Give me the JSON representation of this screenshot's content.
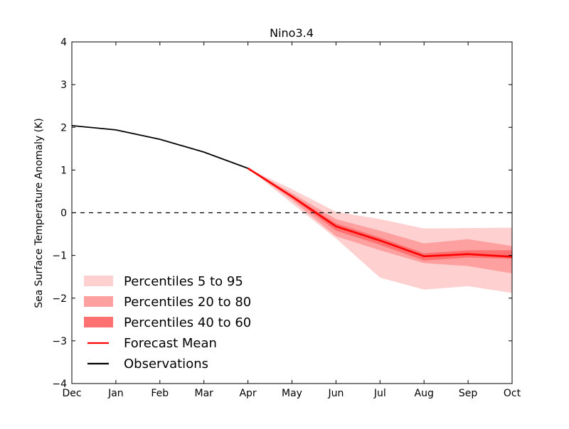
{
  "chart_data": {
    "type": "line",
    "title": "Nino3.4",
    "xlabel": "",
    "ylabel": "Sea Surface Temperature Anomaly (K)",
    "categories": [
      "Dec",
      "Jan",
      "Feb",
      "Mar",
      "Apr",
      "May",
      "Jun",
      "Jul",
      "Aug",
      "Sep",
      "Oct"
    ],
    "ylim": [
      -4,
      4
    ],
    "yticks": [
      4,
      3,
      2,
      1,
      0,
      -1,
      -2,
      -3,
      -4
    ],
    "ytick_labels": [
      "4",
      "3",
      "2",
      "1",
      "0",
      "−1",
      "−2",
      "−3",
      "−4"
    ],
    "reference_line": {
      "y": 0,
      "style": "dashed",
      "color": "#000000"
    },
    "legend_position": "lower-left",
    "observations": {
      "name": "Observations",
      "color": "#000000",
      "x": [
        "Dec",
        "Jan",
        "Feb",
        "Mar",
        "Apr"
      ],
      "values": [
        2.04,
        1.94,
        1.72,
        1.42,
        1.04
      ]
    },
    "forecast": {
      "x": [
        "Apr",
        "May",
        "Jun",
        "Jul",
        "Aug",
        "Sep",
        "Oct"
      ],
      "mean": {
        "name": "Forecast Mean",
        "color": "#ff0000",
        "values": [
          1.04,
          0.38,
          -0.32,
          -0.65,
          -1.02,
          -0.97,
          -1.03
        ]
      },
      "bands": [
        {
          "name": "Percentiles 5 to 95",
          "color": "#ffd0d0",
          "lower": [
            1.04,
            0.22,
            -0.6,
            -1.52,
            -1.8,
            -1.72,
            -1.88
          ],
          "upper": [
            1.04,
            0.55,
            0.02,
            -0.15,
            -0.37,
            -0.36,
            -0.35
          ]
        },
        {
          "name": "Percentiles 20 to 80",
          "color": "#ffa0a0",
          "lower": [
            1.04,
            0.3,
            -0.55,
            -0.88,
            -1.18,
            -1.25,
            -1.42
          ],
          "upper": [
            1.04,
            0.46,
            -0.15,
            -0.42,
            -0.72,
            -0.62,
            -0.78
          ]
        },
        {
          "name": "Percentiles 40 to 60",
          "color": "#ff7070",
          "lower": [
            1.04,
            0.35,
            -0.42,
            -0.75,
            -1.12,
            -1.05,
            -1.08
          ],
          "upper": [
            1.04,
            0.41,
            -0.25,
            -0.58,
            -0.95,
            -0.88,
            -0.88
          ]
        }
      ]
    },
    "legend": [
      {
        "label": "Percentiles 5 to 95",
        "kind": "patch",
        "color": "#ffd0d0"
      },
      {
        "label": "Percentiles 20 to 80",
        "kind": "patch",
        "color": "#ffa0a0"
      },
      {
        "label": "Percentiles 40 to 60",
        "kind": "patch",
        "color": "#ff7070"
      },
      {
        "label": "Forecast Mean",
        "kind": "line",
        "color": "#ff0000"
      },
      {
        "label": "Observations",
        "kind": "line",
        "color": "#000000"
      }
    ]
  }
}
